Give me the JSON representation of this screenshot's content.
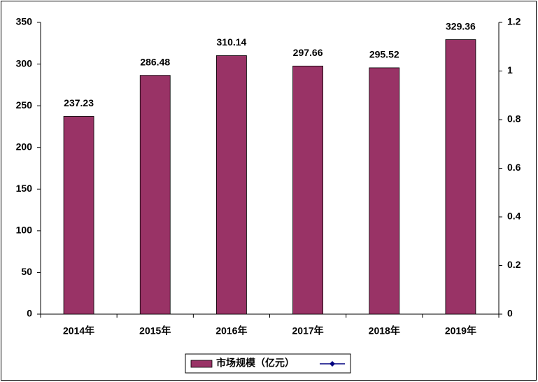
{
  "chart_data": {
    "type": "bar",
    "categories": [
      "2014年",
      "2015年",
      "2016年",
      "2017年",
      "2018年",
      "2019年"
    ],
    "series": [
      {
        "name": "市场规模（亿元）",
        "color": "#993366",
        "values": [
          237.23,
          286.48,
          310.14,
          297.66,
          295.52,
          329.36
        ]
      }
    ],
    "ylim": [
      0,
      350
    ],
    "yticks": [
      0,
      50,
      100,
      150,
      200,
      250,
      300,
      350
    ],
    "y2lim": [
      0,
      1.2
    ],
    "y2ticks": [
      0,
      0.2,
      0.4,
      0.6,
      0.8,
      1,
      1.2
    ],
    "grid": false,
    "legend": "bottom"
  }
}
